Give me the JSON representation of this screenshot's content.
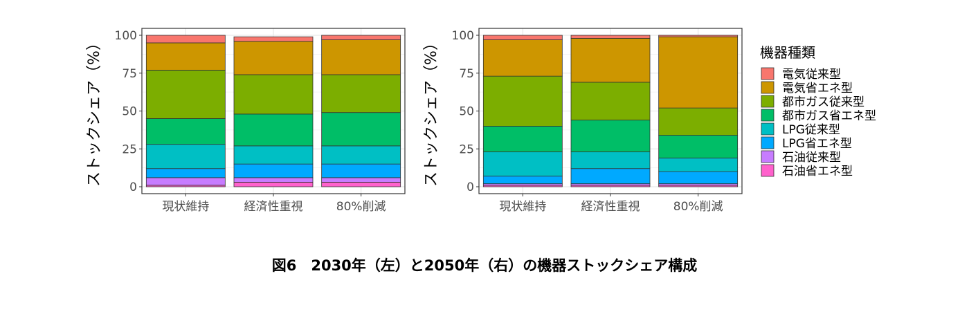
{
  "caption": "図6　2030年（左）と2050年（右）の機器ストックシェア構成",
  "chart_data": [
    {
      "type": "bar",
      "stacked": true,
      "panel": "left",
      "ylabel": "ストックシェア（%）",
      "xlabel": "",
      "ylim": [
        0,
        100
      ],
      "yticks": [
        0,
        25,
        50,
        75,
        100
      ],
      "grid": true,
      "categories": [
        "現状維持",
        "経済性重視",
        "80%削減"
      ],
      "series": [
        {
          "name": "電気従来型",
          "values": [
            5,
            3,
            3
          ]
        },
        {
          "name": "電気省エネ型",
          "values": [
            18,
            22,
            23
          ]
        },
        {
          "name": "都市ガス従来型",
          "values": [
            32,
            26,
            25
          ]
        },
        {
          "name": "都市ガス省エネ型",
          "values": [
            17,
            21,
            22
          ]
        },
        {
          "name": "LPG従来型",
          "values": [
            16,
            12,
            12
          ]
        },
        {
          "name": "LPG省エネ型",
          "values": [
            6,
            9,
            9
          ]
        },
        {
          "name": "石油従来型",
          "values": [
            5,
            3,
            3
          ]
        },
        {
          "name": "石油省エネ型",
          "values": [
            1,
            3,
            3
          ]
        }
      ]
    },
    {
      "type": "bar",
      "stacked": true,
      "panel": "right",
      "ylabel": "ストックシェア（%）",
      "xlabel": "",
      "ylim": [
        0,
        100
      ],
      "yticks": [
        0,
        25,
        50,
        75,
        100
      ],
      "grid": true,
      "categories": [
        "現状維持",
        "経済性重視",
        "80%削減"
      ],
      "series": [
        {
          "name": "電気従来型",
          "values": [
            3,
            2,
            1
          ]
        },
        {
          "name": "電気省エネ型",
          "values": [
            24,
            29,
            47
          ]
        },
        {
          "name": "都市ガス従来型",
          "values": [
            33,
            25,
            18
          ]
        },
        {
          "name": "都市ガス省エネ型",
          "values": [
            17,
            21,
            15
          ]
        },
        {
          "name": "LPG従来型",
          "values": [
            16,
            11,
            9
          ]
        },
        {
          "name": "LPG省エネ型",
          "values": [
            5,
            10,
            8
          ]
        },
        {
          "name": "石油従来型",
          "values": [
            1,
            1,
            1
          ]
        },
        {
          "name": "石油省エネ型",
          "values": [
            1,
            1,
            1
          ]
        }
      ]
    }
  ],
  "legend": {
    "title": "機器種類",
    "placement": "right",
    "items": [
      {
        "label": "電気従来型",
        "color": "#F8766D"
      },
      {
        "label": "電気省エネ型",
        "color": "#CD9600"
      },
      {
        "label": "都市ガス従来型",
        "color": "#7CAE00"
      },
      {
        "label": "都市ガス省エネ型",
        "color": "#00BE67"
      },
      {
        "label": "LPG従来型",
        "color": "#00BFC4"
      },
      {
        "label": "LPG省エネ型",
        "color": "#00A9FF"
      },
      {
        "label": "石油従来型",
        "color": "#C77CFF"
      },
      {
        "label": "石油省エネ型",
        "color": "#FF61CC"
      }
    ]
  }
}
